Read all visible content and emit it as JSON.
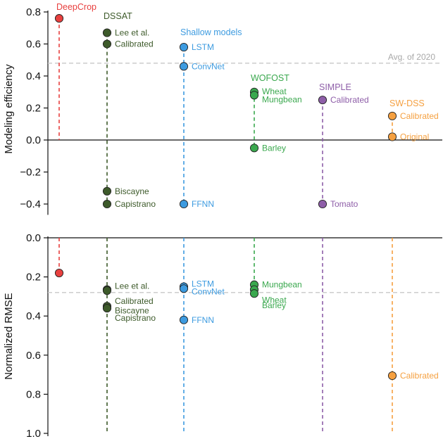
{
  "colors": {
    "DeepCrop": "#e8403f",
    "DSSAT": "#3d5a2a",
    "Shallow models": "#3d9be0",
    "WOFOST": "#3aa84e",
    "SIMPLE": "#8e5ea8",
    "SW-DSS": "#f5a040",
    "reference": "#c8c8c8",
    "axis": "#111111"
  },
  "chart_data": [
    {
      "type": "scatter",
      "ylabel": "Modeling efficiency",
      "ylim": [
        -0.45,
        0.8
      ],
      "yticks": [
        "0.8",
        "0.6",
        "0.4",
        "0.2",
        "0.0",
        "−0.2",
        "−0.4"
      ],
      "ytick_values": [
        0.8,
        0.6,
        0.4,
        0.2,
        0.0,
        -0.2,
        -0.4
      ],
      "reference_line": {
        "label": "Avg. of 2020",
        "value": 0.48
      },
      "groups": [
        {
          "name": "DeepCrop",
          "points": [
            {
              "label": "",
              "value": 0.76
            }
          ]
        },
        {
          "name": "DSSAT",
          "points": [
            {
              "label": "Lee et al.",
              "value": 0.67
            },
            {
              "label": "Calibrated",
              "value": 0.6
            },
            {
              "label": "Biscayne",
              "value": -0.32
            },
            {
              "label": "Capistrano",
              "value": -0.4
            }
          ]
        },
        {
          "name": "Shallow models",
          "points": [
            {
              "label": "LSTM",
              "value": 0.58
            },
            {
              "label": "ConvNet",
              "value": 0.46
            },
            {
              "label": "FFNN",
              "value": -0.4
            }
          ]
        },
        {
          "name": "WOFOST",
          "points": [
            {
              "label": "Wheat",
              "value": 0.3
            },
            {
              "label": "Mungbean",
              "value": 0.28
            },
            {
              "label": "Barley",
              "value": -0.05
            }
          ]
        },
        {
          "name": "SIMPLE",
          "points": [
            {
              "label": "Calibrated",
              "value": 0.25
            },
            {
              "label": "Tomato",
              "value": -0.4
            }
          ]
        },
        {
          "name": "SW-DSS",
          "points": [
            {
              "label": "Calibrated",
              "value": 0.15
            },
            {
              "label": "Original",
              "value": 0.02
            }
          ]
        }
      ]
    },
    {
      "type": "scatter",
      "ylabel": "Normalized RMSE",
      "ylim": [
        0.0,
        1.0
      ],
      "yaxis_inverted": true,
      "yticks": [
        "0.0",
        "0.2",
        "0.4",
        "0.6",
        "0.8",
        "1.0"
      ],
      "ytick_values": [
        0.0,
        0.2,
        0.4,
        0.6,
        0.8,
        1.0
      ],
      "reference_line": {
        "value": 0.28
      },
      "groups": [
        {
          "name": "DeepCrop",
          "points": [
            {
              "label": "",
              "value": 0.18
            }
          ]
        },
        {
          "name": "DSSAT",
          "points": [
            {
              "label": "Lee et al.",
              "value": 0.265
            },
            {
              "label": "Calibrated",
              "value": 0.27
            },
            {
              "label": "Biscayne",
              "value": 0.35
            },
            {
              "label": "Capistrano",
              "value": 0.36
            }
          ]
        },
        {
          "name": "Shallow models",
          "points": [
            {
              "label": "LSTM",
              "value": 0.25
            },
            {
              "label": "ConvNet",
              "value": 0.26
            },
            {
              "label": "FFNN",
              "value": 0.42
            }
          ]
        },
        {
          "name": "WOFOST",
          "points": [
            {
              "label": "Mungbean",
              "value": 0.24
            },
            {
              "label": "Wheat",
              "value": 0.265
            },
            {
              "label": "Barley",
              "value": 0.285
            }
          ]
        },
        {
          "name": "SIMPLE",
          "points": []
        },
        {
          "name": "SW-DSS",
          "points": [
            {
              "label": "Calibrated",
              "value": 0.705
            }
          ]
        }
      ]
    }
  ]
}
